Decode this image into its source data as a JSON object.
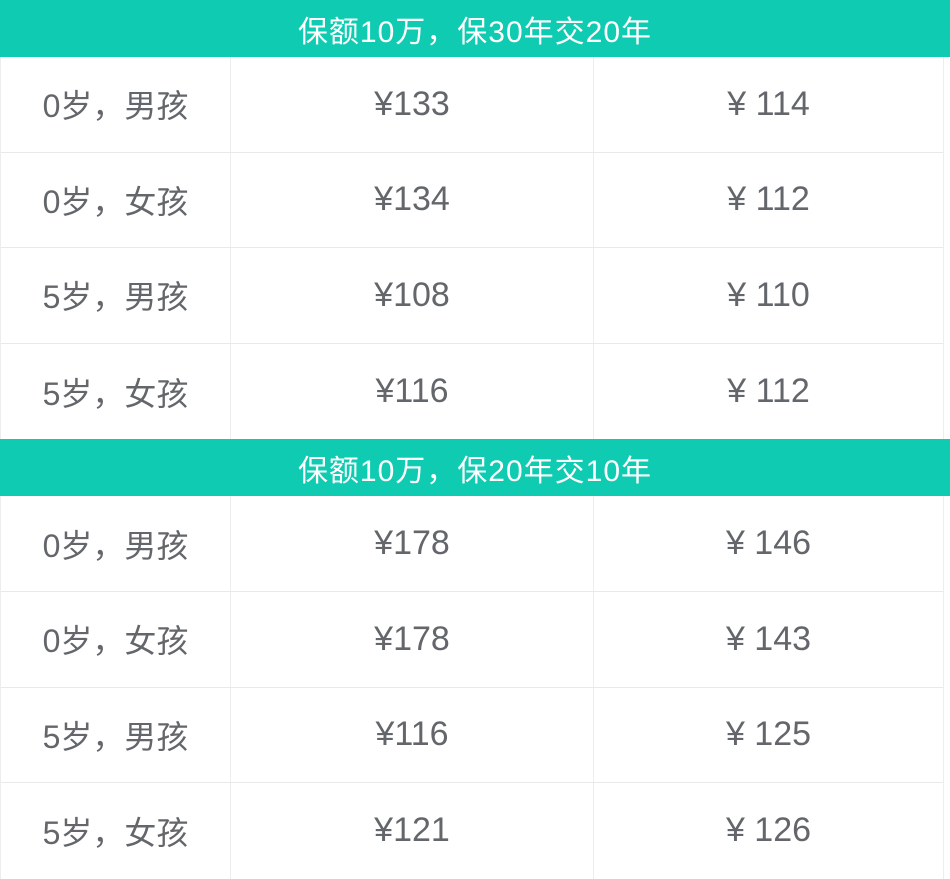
{
  "theme": {
    "accent_teal": "#0ecbb1",
    "header_text_color": "#ffffff",
    "cell_text_color": "#63666a",
    "border_color": "#e9e9e9"
  },
  "tables": [
    {
      "header": "保额10万，保30年交20年",
      "rows": [
        {
          "label": "0岁，男孩",
          "price1": "¥133",
          "price2": "¥ 114"
        },
        {
          "label": "0岁，女孩",
          "price1": "¥134",
          "price2": "¥ 112"
        },
        {
          "label": "5岁，男孩",
          "price1": "¥108",
          "price2": "¥ 110"
        },
        {
          "label": "5岁，女孩",
          "price1": "¥116",
          "price2": "¥ 112"
        }
      ]
    },
    {
      "header": "保额10万，保20年交10年",
      "rows": [
        {
          "label": "0岁，男孩",
          "price1": "¥178",
          "price2": "¥ 146"
        },
        {
          "label": "0岁，女孩",
          "price1": "¥178",
          "price2": "¥ 143"
        },
        {
          "label": "5岁，男孩",
          "price1": "¥116",
          "price2": "¥ 125"
        },
        {
          "label": "5岁，女孩",
          "price1": "¥121",
          "price2": "¥ 126"
        }
      ]
    }
  ]
}
